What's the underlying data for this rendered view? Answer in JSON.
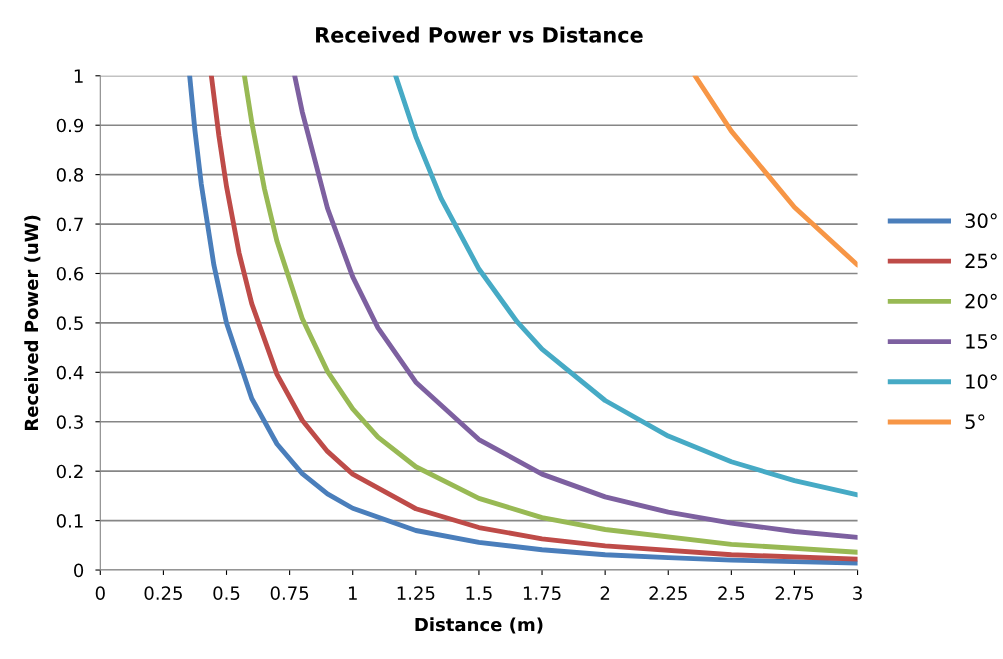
{
  "chart_data": {
    "type": "line",
    "title": "Received Power vs Distance",
    "xlabel": "Distance (m)",
    "ylabel": "Received Power (uW)",
    "xlim": [
      0,
      3
    ],
    "xticks": [
      0,
      0.25,
      0.5,
      0.75,
      1,
      1.25,
      1.5,
      1.75,
      2,
      2.25,
      2.5,
      2.75,
      3
    ],
    "ylim": [
      0,
      1
    ],
    "yticks": [
      0,
      0.1,
      0.2,
      0.3,
      0.4,
      0.5,
      0.6,
      0.7,
      0.8,
      0.9,
      1
    ],
    "grid": "y",
    "legend": "right",
    "marker": "none",
    "line_style": "solid",
    "series": [
      {
        "name": "30°",
        "color": "#4a7ebb",
        "x": [
          0.354,
          0.375,
          0.4,
          0.45,
          0.5,
          0.6,
          0.7,
          0.8,
          0.9,
          1,
          1.25,
          1.5,
          1.75,
          2,
          2.25,
          2.5,
          2.75,
          3
        ],
        "values": [
          1.0,
          0.889,
          0.781,
          0.617,
          0.5,
          0.347,
          0.255,
          0.195,
          0.154,
          0.125,
          0.08,
          0.056,
          0.041,
          0.031,
          0.025,
          0.02,
          0.017,
          0.014
        ]
      },
      {
        "name": "25°",
        "color": "#be4b48",
        "x": [
          0.44,
          0.47,
          0.5,
          0.55,
          0.6,
          0.7,
          0.8,
          0.9,
          1,
          1.25,
          1.5,
          1.75,
          2,
          2.5,
          3
        ],
        "values": [
          1.0,
          0.878,
          0.776,
          0.641,
          0.539,
          0.396,
          0.303,
          0.24,
          0.194,
          0.124,
          0.086,
          0.063,
          0.049,
          0.031,
          0.022
        ]
      },
      {
        "name": "20°",
        "color": "#98b954",
        "x": [
          0.571,
          0.6,
          0.65,
          0.7,
          0.8,
          0.9,
          1,
          1.1,
          1.25,
          1.5,
          1.75,
          2,
          2.5,
          3
        ],
        "values": [
          1.0,
          0.906,
          0.772,
          0.665,
          0.509,
          0.402,
          0.326,
          0.269,
          0.209,
          0.145,
          0.106,
          0.082,
          0.052,
          0.036
        ]
      },
      {
        "name": "15°",
        "color": "#7d60a0",
        "x": [
          0.77,
          0.8,
          0.9,
          1,
          1.1,
          1.25,
          1.5,
          1.75,
          2,
          2.25,
          2.5,
          2.75,
          3
        ],
        "values": [
          1.0,
          0.927,
          0.732,
          0.593,
          0.49,
          0.38,
          0.264,
          0.194,
          0.148,
          0.117,
          0.095,
          0.078,
          0.066
        ]
      },
      {
        "name": "10°",
        "color": "#46aac5",
        "x": [
          1.17,
          1.25,
          1.35,
          1.5,
          1.65,
          1.75,
          2,
          2.25,
          2.5,
          2.75,
          3
        ],
        "values": [
          1.0,
          0.877,
          0.752,
          0.609,
          0.503,
          0.447,
          0.343,
          0.271,
          0.219,
          0.181,
          0.152
        ]
      },
      {
        "name": "5°",
        "color": "#f79646",
        "x": [
          2.356,
          2.5,
          2.75,
          3
        ],
        "values": [
          1.0,
          0.888,
          0.734,
          0.617
        ]
      }
    ]
  }
}
